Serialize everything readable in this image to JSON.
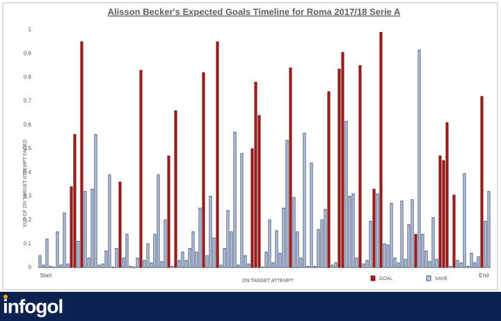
{
  "chart_data": {
    "type": "bar",
    "title": "Alisson Becker's Expected Goals Timeline for Roma 2017/18 Serie A",
    "y_label": "XG2 OF ON TARGET ATTEMPT FACED",
    "x_label": "ON TARGET ATTEMPT",
    "categories": [
      "Start",
      null,
      null,
      null,
      null,
      null,
      null,
      null,
      null,
      null,
      null,
      null,
      null,
      null,
      null,
      null,
      null,
      null,
      null,
      null,
      null,
      null,
      null,
      null,
      null,
      null,
      null,
      null,
      null,
      null,
      null,
      null,
      null,
      null,
      null,
      null,
      null,
      null,
      null,
      null,
      null,
      null,
      null,
      null,
      null,
      null,
      null,
      null,
      null,
      null,
      null,
      null,
      null,
      null,
      null,
      null,
      null,
      null,
      null,
      null,
      null,
      null,
      null,
      null,
      null,
      null,
      null,
      null,
      null,
      null,
      null,
      null,
      null,
      null,
      null,
      null,
      null,
      null,
      null,
      null,
      null,
      null,
      null,
      null,
      null,
      null,
      null,
      null,
      null,
      null,
      null,
      null,
      null,
      null,
      null,
      null,
      null,
      null,
      null,
      null,
      null,
      null,
      null,
      null,
      null,
      null,
      null,
      null,
      null,
      null,
      null,
      null,
      null,
      null,
      null,
      null,
      null,
      null,
      null,
      null,
      null,
      null,
      null,
      null,
      null,
      null,
      null,
      null,
      null,
      "End"
    ],
    "series": [
      {
        "name": "GOAL",
        "color": "#b01c1c",
        "stroke": "#5a0a0a",
        "values": [
          null,
          null,
          null,
          null,
          null,
          null,
          null,
          null,
          null,
          0.34,
          0.56,
          null,
          0.95,
          null,
          null,
          null,
          null,
          null,
          null,
          null,
          null,
          null,
          null,
          0.36,
          null,
          null,
          null,
          null,
          null,
          0.83,
          null,
          null,
          null,
          null,
          null,
          null,
          null,
          0.47,
          null,
          0.66,
          null,
          null,
          null,
          null,
          null,
          null,
          null,
          0.82,
          null,
          null,
          null,
          0.95,
          null,
          null,
          null,
          null,
          null,
          null,
          null,
          null,
          null,
          0.5,
          0.78,
          0.64,
          null,
          null,
          null,
          null,
          null,
          null,
          null,
          null,
          0.84,
          null,
          null,
          null,
          null,
          null,
          null,
          null,
          null,
          null,
          null,
          0.74,
          null,
          null,
          0.835,
          0.905,
          null,
          null,
          null,
          null,
          0.85,
          null,
          null,
          null,
          0.33,
          null,
          0.99,
          null,
          null,
          null,
          null,
          null,
          null,
          null,
          null,
          null,
          0.14,
          null,
          null,
          null,
          null,
          null,
          null,
          0.47,
          0.45,
          0.61,
          null,
          0.305,
          null,
          null,
          null,
          null,
          null,
          null,
          null,
          0.72,
          null,
          null
        ]
      },
      {
        "name": "SAVE",
        "color": "#b9c9e2",
        "stroke": "#2f3f62",
        "values": [
          0.05,
          0.01,
          0.12,
          0.005,
          0.002,
          0.15,
          0.01,
          0.23,
          0.015,
          null,
          null,
          0.11,
          null,
          0.32,
          0.04,
          0.33,
          0.56,
          0.01,
          0.015,
          0.07,
          0.39,
          0.002,
          0.08,
          null,
          0.04,
          0.14,
          0.005,
          0.002,
          0.04,
          null,
          0.03,
          0.1,
          0.02,
          0.14,
          0.39,
          0.025,
          0.2,
          null,
          0.005,
          null,
          0.03,
          0.065,
          0.03,
          0.08,
          0.15,
          0.065,
          0.25,
          null,
          0.05,
          0.3,
          0.125,
          null,
          0.01,
          0.08,
          0.24,
          0.15,
          0.57,
          0.01,
          0.48,
          0.05,
          0.015,
          null,
          null,
          null,
          0.002,
          0.065,
          0.2,
          0.02,
          0.155,
          0.06,
          0.25,
          0.535,
          null,
          0.295,
          0.15,
          0.04,
          0.565,
          0.005,
          0.44,
          0.005,
          0.16,
          0.2,
          0.245,
          null,
          0.01,
          0.02,
          null,
          null,
          0.615,
          0.3,
          0.31,
          0.04,
          null,
          0.015,
          0.03,
          0.195,
          null,
          0.31,
          null,
          0.1,
          0.095,
          0.27,
          0.04,
          0.02,
          0.28,
          0.035,
          0.18,
          0.285,
          null,
          0.915,
          0.14,
          0.07,
          0.025,
          0.21,
          0.035,
          null,
          null,
          null,
          0.005,
          null,
          0.03,
          0.02,
          0.395,
          0.005,
          0.06,
          0.02,
          0.045,
          null,
          0.195,
          0.32
        ]
      }
    ],
    "ylim": [
      0,
      1
    ],
    "yticks": [
      0,
      0.1,
      0.2,
      0.3,
      0.4,
      0.5,
      0.6,
      0.7,
      0.8,
      0.9,
      1
    ],
    "grid": false,
    "legend": "bottom-right"
  },
  "logo": "infogol"
}
